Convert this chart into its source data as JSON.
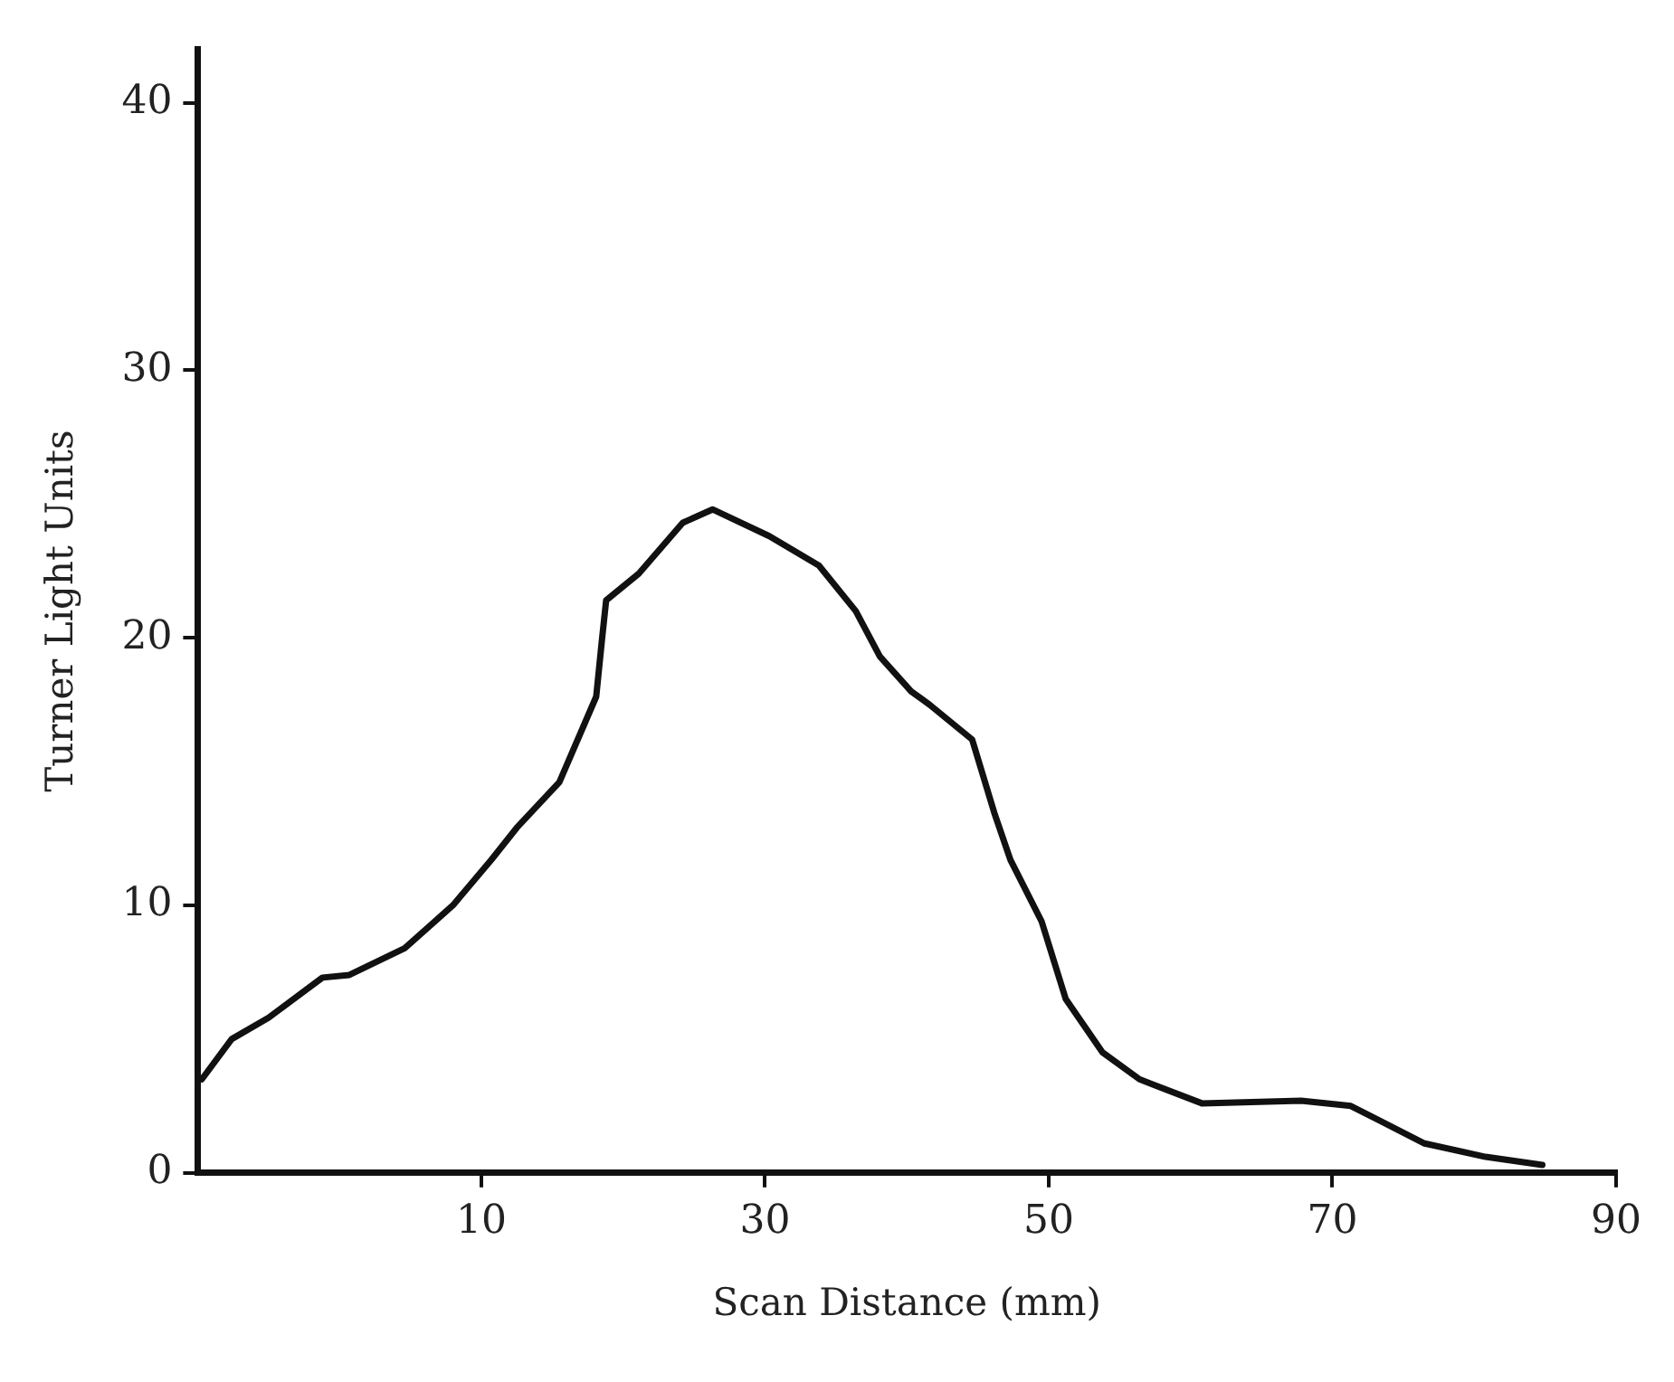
{
  "chart_data": {
    "type": "line",
    "xlabel": "Scan Distance (mm)",
    "ylabel": "Turner Light Units",
    "xlim": [
      -10,
      90
    ],
    "xticks": [
      10,
      30,
      50,
      70,
      90
    ],
    "ylim": [
      0,
      42
    ],
    "yticks": [
      0,
      10,
      20,
      30,
      40
    ],
    "grid": false,
    "legend": false,
    "marker": "none",
    "line_style": "solid",
    "series": [
      {
        "color": "#111111",
        "x": [
          -9.7,
          -7.6,
          -5.0,
          -1.2,
          0.7,
          4.6,
          8.0,
          10.7,
          12.5,
          15.5,
          18.1,
          18.5,
          18.8,
          21.1,
          24.2,
          26.3,
          30.3,
          33.8,
          36.4,
          38.1,
          40.3,
          41.6,
          44.6,
          46.2,
          47.3,
          49.5,
          51.2,
          53.8,
          56.4,
          60.8,
          67.8,
          71.3,
          76.5,
          80.8,
          84.8
        ],
        "values": [
          3.5,
          5.0,
          5.8,
          7.3,
          7.4,
          8.4,
          10.0,
          11.7,
          12.9,
          14.6,
          17.8,
          19.9,
          21.4,
          22.4,
          24.3,
          24.8,
          23.8,
          22.7,
          21.0,
          19.3,
          18.0,
          17.5,
          16.2,
          13.4,
          11.7,
          9.4,
          6.5,
          4.5,
          3.5,
          2.6,
          2.7,
          2.5,
          1.1,
          0.6,
          0.3
        ]
      }
    ]
  }
}
